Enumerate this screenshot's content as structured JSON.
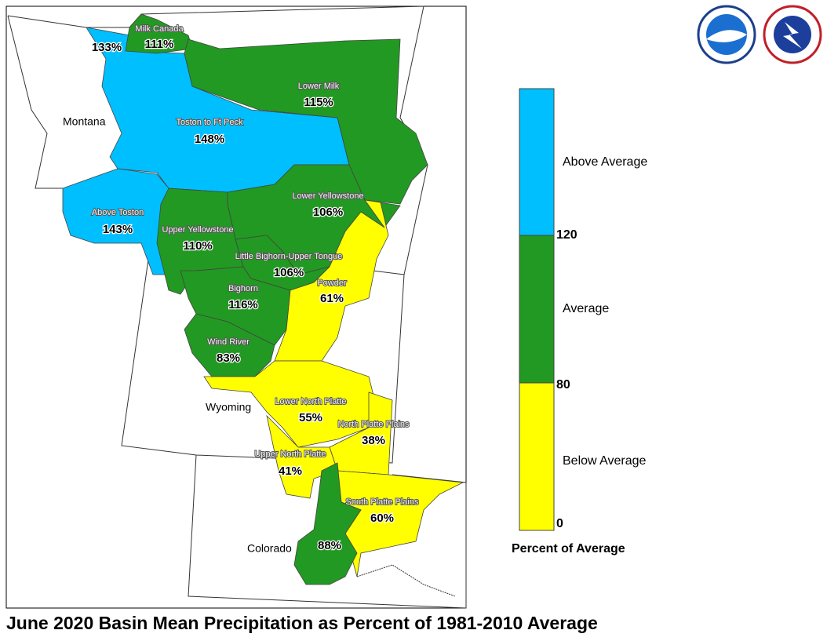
{
  "title": "June 2020 Basin Mean Precipitation as Percent of 1981-2010 Average",
  "states": [
    "Montana",
    "Wyoming",
    "Colorado"
  ],
  "basins": [
    {
      "name": "Milk Canada",
      "value": "111%"
    },
    {
      "name": "Lower Milk",
      "value": "115%"
    },
    {
      "name": "Toston to Ft Peck",
      "value": "148%"
    },
    {
      "name": "Above Toston",
      "value": "143%"
    },
    {
      "name": "Lower Yellowstone",
      "value": "106%"
    },
    {
      "name": "Upper Yellowstone",
      "value": "110%"
    },
    {
      "name": "Little Bighorn-Upper Tongue",
      "value": "106%"
    },
    {
      "name": "Powder",
      "value": "61%"
    },
    {
      "name": "Bighorn",
      "value": "116%"
    },
    {
      "name": "Wind River",
      "value": "83%"
    },
    {
      "name": "Lower North Platte",
      "value": "55%"
    },
    {
      "name": "North Platte Plains",
      "value": "38%"
    },
    {
      "name": "Upper North Platte",
      "value": "41%"
    },
    {
      "name": "South Platte Plains",
      "value": "60%"
    },
    {
      "name": null,
      "value": "133%"
    },
    {
      "name": null,
      "value": "88%"
    }
  ],
  "legend": {
    "title": "Percent of Average",
    "classes": [
      "Above Average",
      "Average",
      "Below Average"
    ],
    "breaks": [
      "120",
      "80",
      "0"
    ]
  }
}
